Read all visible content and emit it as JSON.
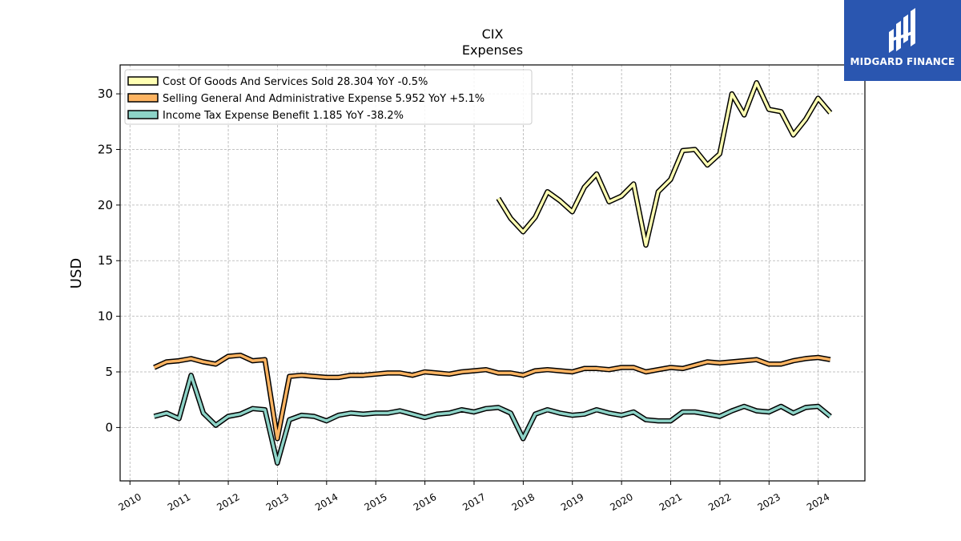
{
  "chart_data": {
    "type": "line",
    "title": "CIX",
    "subtitle": "Expenses",
    "ylabel": "USD",
    "xlabel": "",
    "ylim": [
      -4.8,
      32.6
    ],
    "xlim": [
      2009.8,
      2024.95
    ],
    "grid": true,
    "legend_position": "top-left",
    "y_ticks": [
      0,
      5,
      10,
      15,
      20,
      25,
      30
    ],
    "x_ticks": [
      "2010",
      "2011",
      "2012",
      "2013",
      "2014",
      "2015",
      "2016",
      "2017",
      "2018",
      "2019",
      "2020",
      "2021",
      "2022",
      "2023",
      "2024"
    ],
    "series": [
      {
        "name": "Cost Of Goods And Services Sold",
        "legend_label": "Cost Of Goods And Services Sold  28.304 YoY -0.5%",
        "color": "#ffffb3",
        "x": [
          "2017-06-30",
          "2017-09-30",
          "2017-12-31",
          "2018-03-31",
          "2018-06-30",
          "2018-09-30",
          "2018-12-31",
          "2019-03-31",
          "2019-06-30",
          "2019-09-30",
          "2019-12-31",
          "2020-03-31",
          "2020-06-30",
          "2020-09-30",
          "2020-12-31",
          "2021-03-31",
          "2021-06-30",
          "2021-09-30",
          "2021-12-31",
          "2022-03-31",
          "2022-06-30",
          "2022-09-30",
          "2022-12-31",
          "2023-03-31",
          "2023-06-30",
          "2023-09-30",
          "2023-12-31",
          "2024-03-31",
          "2024-06-30"
        ],
        "values": [
          20.6,
          18.8,
          17.6,
          18.9,
          21.2,
          20.4,
          19.4,
          21.6,
          22.8,
          20.3,
          20.8,
          21.9,
          16.4,
          21.2,
          22.3,
          24.9,
          25.0,
          23.6,
          24.6,
          30.0,
          28.1,
          31.0,
          28.6,
          28.4,
          26.3,
          27.7,
          29.6,
          28.3,
          null
        ]
      },
      {
        "name": "Selling General And Administrative Expense",
        "legend_label": "Selling General And Administrative Expense  5.952 YoY +5.1%",
        "color": "#fdb462",
        "x": [
          "2010-06-30",
          "2010-09-30",
          "2010-12-31",
          "2011-03-31",
          "2011-06-30",
          "2011-09-30",
          "2011-12-31",
          "2012-03-31",
          "2012-06-30",
          "2012-09-30",
          "2012-12-31",
          "2013-03-31",
          "2013-06-30",
          "2013-09-30",
          "2013-12-31",
          "2014-03-31",
          "2014-06-30",
          "2014-09-30",
          "2014-12-31",
          "2015-03-31",
          "2015-06-30",
          "2015-09-30",
          "2015-12-31",
          "2016-03-31",
          "2016-06-30",
          "2016-09-30",
          "2016-12-31",
          "2017-03-31",
          "2017-06-30",
          "2017-09-30",
          "2017-12-31",
          "2018-03-31",
          "2018-06-30",
          "2018-09-30",
          "2018-12-31",
          "2019-03-31",
          "2019-06-30",
          "2019-09-30",
          "2019-12-31",
          "2020-03-31",
          "2020-06-30",
          "2020-09-30",
          "2020-12-31",
          "2021-03-31",
          "2021-06-30",
          "2021-09-30",
          "2021-12-31",
          "2022-03-31",
          "2022-06-30",
          "2022-09-30",
          "2022-12-31",
          "2023-03-31",
          "2023-06-30",
          "2023-09-30",
          "2023-12-31",
          "2024-03-31",
          "2024-06-30"
        ],
        "values": [
          5.4,
          5.9,
          6.0,
          6.2,
          5.9,
          5.7,
          6.4,
          6.5,
          6.0,
          6.1,
          -1.0,
          4.6,
          4.7,
          4.6,
          4.5,
          4.5,
          4.7,
          4.7,
          4.8,
          4.9,
          4.9,
          4.7,
          5.0,
          4.9,
          4.8,
          5.0,
          5.1,
          5.2,
          4.9,
          4.9,
          4.7,
          5.1,
          5.2,
          5.1,
          5.0,
          5.3,
          5.3,
          5.2,
          5.4,
          5.4,
          5.0,
          5.2,
          5.4,
          5.3,
          5.6,
          5.9,
          5.8,
          5.9,
          6.0,
          6.1,
          5.7,
          5.7,
          6.0,
          6.2,
          6.3,
          6.1,
          null
        ]
      },
      {
        "name": "Income Tax Expense Benefit",
        "legend_label": "Income Tax Expense Benefit  1.185 YoY -38.2%",
        "color": "#8dd3c7",
        "x": [
          "2010-06-30",
          "2010-09-30",
          "2010-12-31",
          "2011-03-31",
          "2011-06-30",
          "2011-09-30",
          "2011-12-31",
          "2012-03-31",
          "2012-06-30",
          "2012-09-30",
          "2012-12-31",
          "2013-03-31",
          "2013-06-30",
          "2013-09-30",
          "2013-12-31",
          "2014-03-31",
          "2014-06-30",
          "2014-09-30",
          "2014-12-31",
          "2015-03-31",
          "2015-06-30",
          "2015-09-30",
          "2015-12-31",
          "2016-03-31",
          "2016-06-30",
          "2016-09-30",
          "2016-12-31",
          "2017-03-31",
          "2017-06-30",
          "2017-09-30",
          "2017-12-31",
          "2018-03-31",
          "2018-06-30",
          "2018-09-30",
          "2018-12-31",
          "2019-03-31",
          "2019-06-30",
          "2019-09-30",
          "2019-12-31",
          "2020-03-31",
          "2020-06-30",
          "2020-09-30",
          "2020-12-31",
          "2021-03-31",
          "2021-06-30",
          "2021-09-30",
          "2021-12-31",
          "2022-03-31",
          "2022-06-30",
          "2022-09-30",
          "2022-12-31",
          "2023-03-31",
          "2023-06-30",
          "2023-09-30",
          "2023-12-31",
          "2024-03-31",
          "2024-06-30"
        ],
        "values": [
          1.0,
          1.3,
          0.8,
          4.7,
          1.3,
          0.2,
          1.0,
          1.2,
          1.7,
          1.6,
          -3.2,
          0.7,
          1.1,
          1.0,
          0.6,
          1.1,
          1.3,
          1.2,
          1.3,
          1.3,
          1.5,
          1.2,
          0.9,
          1.2,
          1.3,
          1.6,
          1.4,
          1.7,
          1.8,
          1.3,
          -1.0,
          1.2,
          1.6,
          1.3,
          1.1,
          1.2,
          1.6,
          1.3,
          1.1,
          1.4,
          0.7,
          0.6,
          0.6,
          1.4,
          1.4,
          1.2,
          1.0,
          1.5,
          1.9,
          1.5,
          1.4,
          1.9,
          1.3,
          1.8,
          1.9,
          1.0,
          null
        ]
      }
    ]
  },
  "logo": {
    "text": "MIDGARD FINANCE",
    "bg_color": "#2a56b0",
    "text_color": "#ffffff"
  }
}
